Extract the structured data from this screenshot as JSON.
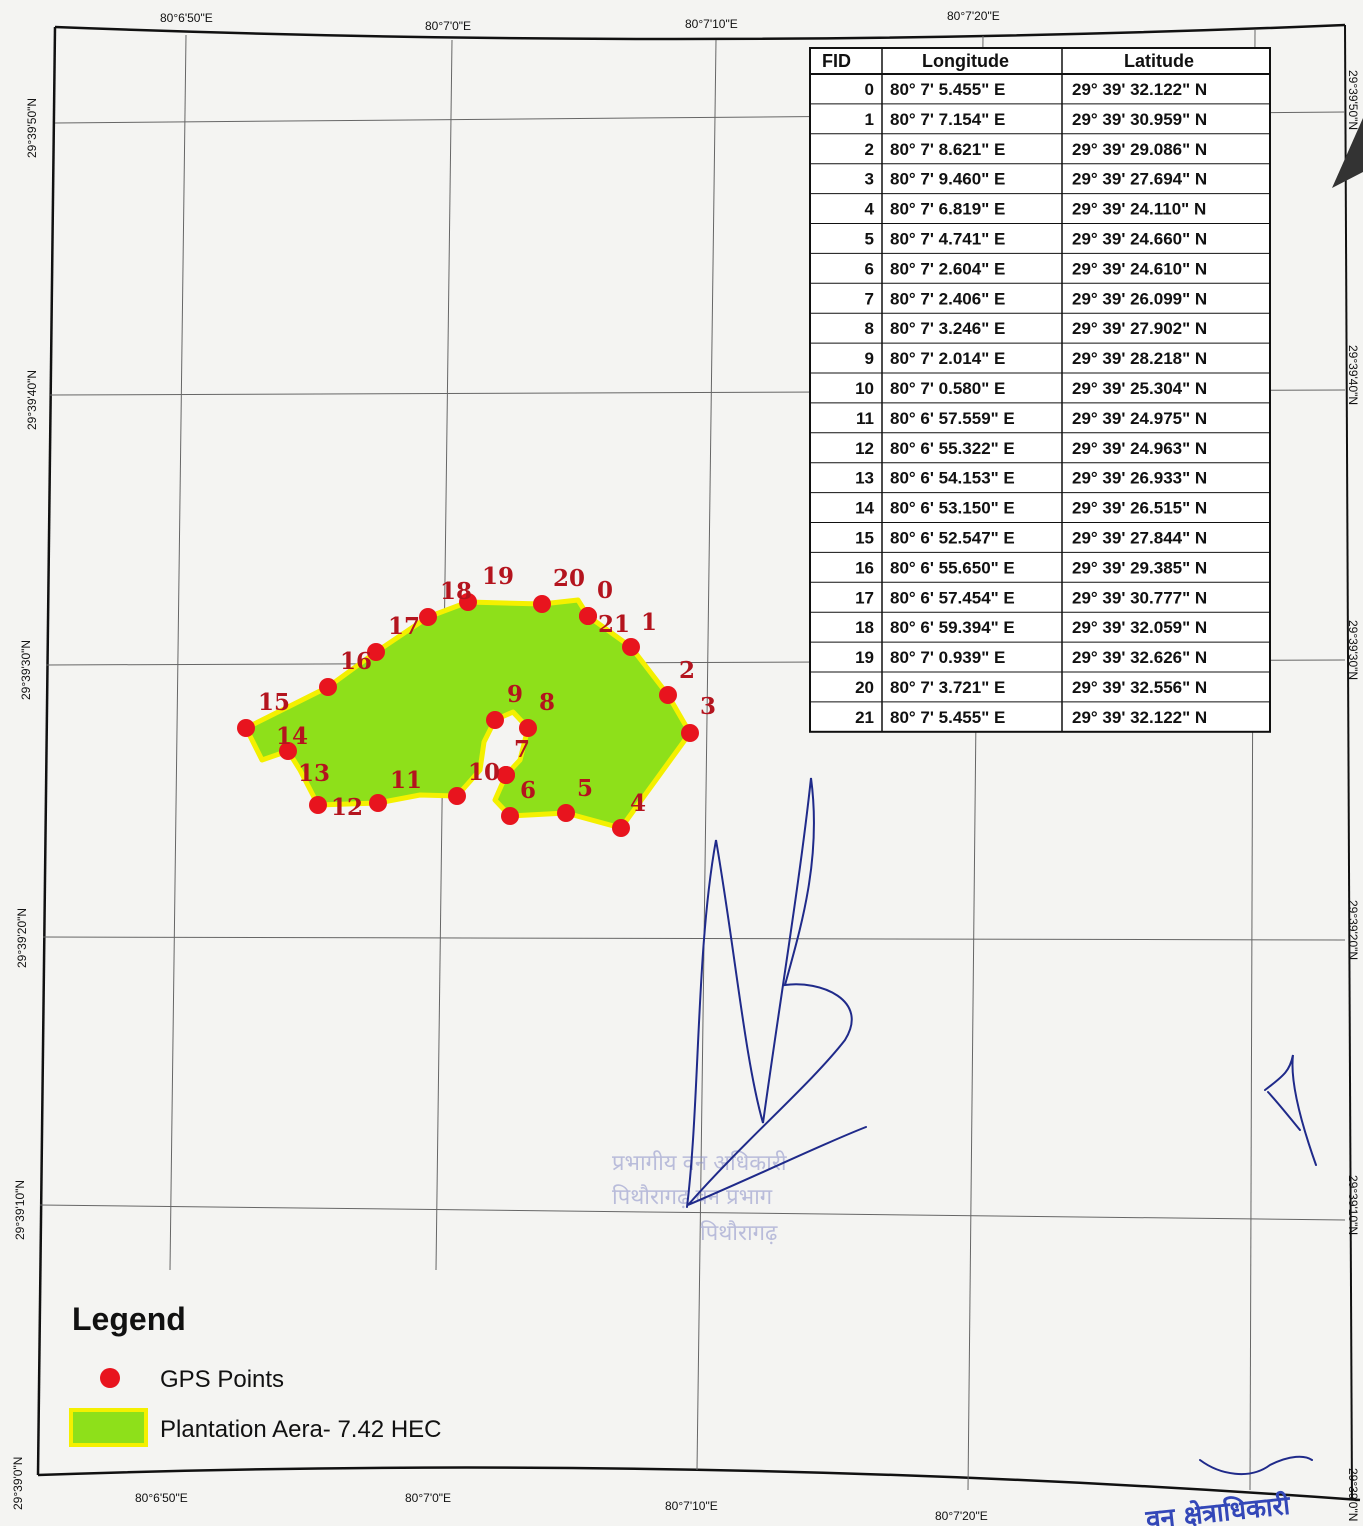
{
  "top_axis_labels": [
    "80°6'50\"E",
    "80°7'0\"E",
    "80°7'10\"E",
    "80°7'20\"E"
  ],
  "bottom_axis_labels": [
    "80°6'50\"E",
    "80°7'0\"E",
    "80°7'10\"E",
    "80°7'20\"E"
  ],
  "left_axis_labels": [
    "29°39'50\"N",
    "29°39'40\"N",
    "29°39'30\"N",
    "29°39'20\"N",
    "29°39'10\"N",
    "29°39'0\"N"
  ],
  "right_axis_labels": [
    "29°39'50\"N",
    "29°39'40\"N",
    "29°39'30\"N",
    "29°39'20\"N",
    "29°39'10\"N",
    "29°39'0\"N"
  ],
  "table": {
    "headers": [
      "FID",
      "Longitude",
      "Latitude"
    ],
    "rows": [
      [
        "0",
        "80° 7' 5.455\" E",
        "29° 39' 32.122\" N"
      ],
      [
        "1",
        "80° 7' 7.154\" E",
        "29° 39' 30.959\" N"
      ],
      [
        "2",
        "80° 7' 8.621\" E",
        "29° 39' 29.086\" N"
      ],
      [
        "3",
        "80° 7' 9.460\" E",
        "29° 39' 27.694\" N"
      ],
      [
        "4",
        "80° 7' 6.819\" E",
        "29° 39' 24.110\" N"
      ],
      [
        "5",
        "80° 7' 4.741\" E",
        "29° 39' 24.660\" N"
      ],
      [
        "6",
        "80° 7' 2.604\" E",
        "29° 39' 24.610\" N"
      ],
      [
        "7",
        "80° 7' 2.406\" E",
        "29° 39' 26.099\" N"
      ],
      [
        "8",
        "80° 7' 3.246\" E",
        "29° 39' 27.902\" N"
      ],
      [
        "9",
        "80° 7' 2.014\" E",
        "29° 39' 28.218\" N"
      ],
      [
        "10",
        "80° 7' 0.580\" E",
        "29° 39' 25.304\" N"
      ],
      [
        "11",
        "80° 6' 57.559\" E",
        "29° 39' 24.975\" N"
      ],
      [
        "12",
        "80° 6' 55.322\" E",
        "29° 39' 24.963\" N"
      ],
      [
        "13",
        "80° 6' 54.153\" E",
        "29° 39' 26.933\" N"
      ],
      [
        "14",
        "80° 6' 53.150\" E",
        "29° 39' 26.515\" N"
      ],
      [
        "15",
        "80° 6' 52.547\" E",
        "29° 39' 27.844\" N"
      ],
      [
        "16",
        "80° 6' 55.650\" E",
        "29° 39' 29.385\" N"
      ],
      [
        "17",
        "80° 6' 57.454\" E",
        "29° 39' 30.777\" N"
      ],
      [
        "18",
        "80° 6' 59.394\" E",
        "29° 39' 32.059\" N"
      ],
      [
        "19",
        "80° 7' 0.939\" E",
        "29° 39' 32.626\" N"
      ],
      [
        "20",
        "80° 7' 3.721\" E",
        "29° 39' 32.556\" N"
      ],
      [
        "21",
        "80° 7' 5.455\" E",
        "29° 39' 32.122\" N"
      ]
    ]
  },
  "points": [
    {
      "label": "0"
    },
    {
      "label": "1"
    },
    {
      "label": "2"
    },
    {
      "label": "3"
    },
    {
      "label": "4"
    },
    {
      "label": "5"
    },
    {
      "label": "6"
    },
    {
      "label": "7"
    },
    {
      "label": "8"
    },
    {
      "label": "9"
    },
    {
      "label": "10"
    },
    {
      "label": "11"
    },
    {
      "label": "12"
    },
    {
      "label": "13"
    },
    {
      "label": "14"
    },
    {
      "label": "15"
    },
    {
      "label": "16"
    },
    {
      "label": "17"
    },
    {
      "label": "18"
    },
    {
      "label": "19"
    },
    {
      "label": "20"
    },
    {
      "label": "21"
    }
  ],
  "legend": {
    "title": "Legend",
    "items": [
      {
        "label": "GPS Points",
        "symbol": "red-dot",
        "color": "#e8141e"
      },
      {
        "label": "Plantation Aera- 7.42 HEC",
        "symbol": "green-polygon",
        "color": "#8ee01a",
        "outline": "#f4f000"
      }
    ]
  },
  "stamp_text": [
    "प्रभागीय वन अधिकारी",
    "पिथौरागढ़ वन प्रभाग",
    "पिथौरागढ़"
  ],
  "signature_stamp_text": "वन क्षेत्राधिकारी",
  "colors": {
    "grid": "#555555",
    "polygon_fill": "#8ee01a",
    "polygon_outline": "#f4f000",
    "point": "#e8141e",
    "label": "#b4141e",
    "signature": "#1f2a8a",
    "stamp": "#8a8fc8"
  }
}
